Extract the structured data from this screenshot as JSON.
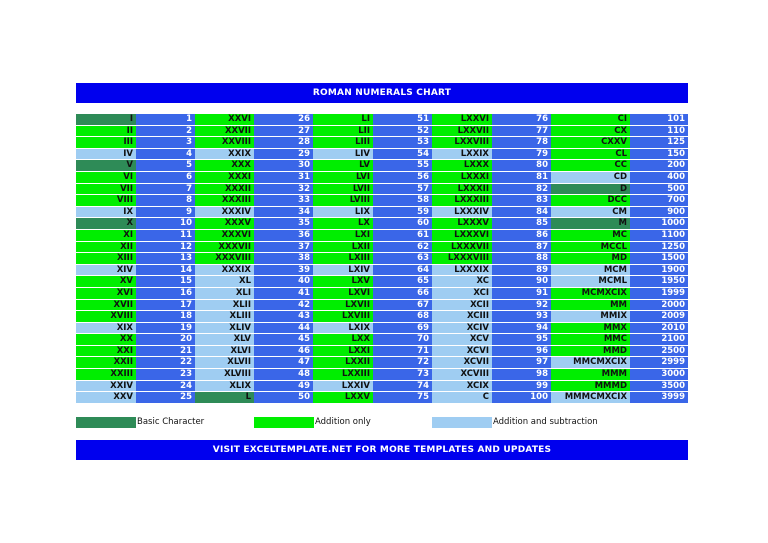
{
  "title": "ROMAN NUMERALS CHART",
  "footer": "VISIT EXCELTEMPLATE.NET FOR MORE TEMPLATES AND UPDATES",
  "colors": {
    "basic": "#2e8b57",
    "addition": "#00ee00",
    "subtraction": "#9fcdf2",
    "number": "#3a66e8",
    "banner": "#0000ee"
  },
  "legend": [
    {
      "type": "basic",
      "label": "Basic Character"
    },
    {
      "type": "add",
      "label": "Addition only"
    },
    {
      "type": "sub",
      "label": "Addition and subtraction"
    }
  ],
  "columns": [
    [
      [
        "I",
        "1",
        "basic"
      ],
      [
        "II",
        "2",
        "add"
      ],
      [
        "III",
        "3",
        "add"
      ],
      [
        "IV",
        "4",
        "sub"
      ],
      [
        "V",
        "5",
        "basic"
      ],
      [
        "VI",
        "6",
        "add"
      ],
      [
        "VII",
        "7",
        "add"
      ],
      [
        "VIII",
        "8",
        "add"
      ],
      [
        "IX",
        "9",
        "sub"
      ],
      [
        "X",
        "10",
        "basic"
      ],
      [
        "XI",
        "11",
        "add"
      ],
      [
        "XII",
        "12",
        "add"
      ],
      [
        "XIII",
        "13",
        "add"
      ],
      [
        "XIV",
        "14",
        "sub"
      ],
      [
        "XV",
        "15",
        "add"
      ],
      [
        "XVI",
        "16",
        "add"
      ],
      [
        "XVII",
        "17",
        "add"
      ],
      [
        "XVIII",
        "18",
        "add"
      ],
      [
        "XIX",
        "19",
        "sub"
      ],
      [
        "XX",
        "20",
        "add"
      ],
      [
        "XXI",
        "21",
        "add"
      ],
      [
        "XXII",
        "22",
        "add"
      ],
      [
        "XXIII",
        "23",
        "add"
      ],
      [
        "XXIV",
        "24",
        "sub"
      ],
      [
        "XXV",
        "25",
        "sub"
      ]
    ],
    [
      [
        "XXVI",
        "26",
        "add"
      ],
      [
        "XXVII",
        "27",
        "add"
      ],
      [
        "XXVIII",
        "28",
        "add"
      ],
      [
        "XXIX",
        "29",
        "sub"
      ],
      [
        "XXX",
        "30",
        "add"
      ],
      [
        "XXXI",
        "31",
        "add"
      ],
      [
        "XXXII",
        "32",
        "add"
      ],
      [
        "XXXIII",
        "33",
        "add"
      ],
      [
        "XXXIV",
        "34",
        "sub"
      ],
      [
        "XXXV",
        "35",
        "add"
      ],
      [
        "XXXVI",
        "36",
        "add"
      ],
      [
        "XXXVII",
        "37",
        "add"
      ],
      [
        "XXXVIII",
        "38",
        "add"
      ],
      [
        "XXXIX",
        "39",
        "sub"
      ],
      [
        "XL",
        "40",
        "sub"
      ],
      [
        "XLI",
        "41",
        "sub"
      ],
      [
        "XLII",
        "42",
        "sub"
      ],
      [
        "XLIII",
        "43",
        "sub"
      ],
      [
        "XLIV",
        "44",
        "sub"
      ],
      [
        "XLV",
        "45",
        "sub"
      ],
      [
        "XLVI",
        "46",
        "sub"
      ],
      [
        "XLVII",
        "47",
        "sub"
      ],
      [
        "XLVIII",
        "48",
        "sub"
      ],
      [
        "XLIX",
        "49",
        "sub"
      ],
      [
        "L",
        "50",
        "basic"
      ]
    ],
    [
      [
        "LI",
        "51",
        "add"
      ],
      [
        "LII",
        "52",
        "add"
      ],
      [
        "LIII",
        "53",
        "add"
      ],
      [
        "LIV",
        "54",
        "sub"
      ],
      [
        "LV",
        "55",
        "add"
      ],
      [
        "LVI",
        "56",
        "add"
      ],
      [
        "LVII",
        "57",
        "add"
      ],
      [
        "LVIII",
        "58",
        "add"
      ],
      [
        "LIX",
        "59",
        "sub"
      ],
      [
        "LX",
        "60",
        "add"
      ],
      [
        "LXI",
        "61",
        "add"
      ],
      [
        "LXII",
        "62",
        "add"
      ],
      [
        "LXIII",
        "63",
        "add"
      ],
      [
        "LXIV",
        "64",
        "sub"
      ],
      [
        "LXV",
        "65",
        "add"
      ],
      [
        "LXVI",
        "66",
        "add"
      ],
      [
        "LXVII",
        "67",
        "add"
      ],
      [
        "LXVIII",
        "68",
        "add"
      ],
      [
        "LXIX",
        "69",
        "sub"
      ],
      [
        "LXX",
        "70",
        "add"
      ],
      [
        "LXXI",
        "71",
        "add"
      ],
      [
        "LXXII",
        "72",
        "add"
      ],
      [
        "LXXIII",
        "73",
        "add"
      ],
      [
        "LXXIV",
        "74",
        "sub"
      ],
      [
        "LXXV",
        "75",
        "add"
      ]
    ],
    [
      [
        "LXXVI",
        "76",
        "add"
      ],
      [
        "LXXVII",
        "77",
        "add"
      ],
      [
        "LXXVIII",
        "78",
        "add"
      ],
      [
        "LXXIX",
        "79",
        "sub"
      ],
      [
        "LXXX",
        "80",
        "add"
      ],
      [
        "LXXXI",
        "81",
        "add"
      ],
      [
        "LXXXII",
        "82",
        "add"
      ],
      [
        "LXXXIII",
        "83",
        "add"
      ],
      [
        "LXXXIV",
        "84",
        "sub"
      ],
      [
        "LXXXV",
        "85",
        "add"
      ],
      [
        "LXXXVI",
        "86",
        "add"
      ],
      [
        "LXXXVII",
        "87",
        "add"
      ],
      [
        "LXXXVIII",
        "88",
        "add"
      ],
      [
        "LXXXIX",
        "89",
        "sub"
      ],
      [
        "XC",
        "90",
        "sub"
      ],
      [
        "XCI",
        "91",
        "sub"
      ],
      [
        "XCII",
        "92",
        "sub"
      ],
      [
        "XCIII",
        "93",
        "sub"
      ],
      [
        "XCIV",
        "94",
        "sub"
      ],
      [
        "XCV",
        "95",
        "sub"
      ],
      [
        "XCVI",
        "96",
        "sub"
      ],
      [
        "XCVII",
        "97",
        "sub"
      ],
      [
        "XCVIII",
        "98",
        "sub"
      ],
      [
        "XCIX",
        "99",
        "sub"
      ],
      [
        "C",
        "100",
        "sub"
      ]
    ],
    [
      [
        "CI",
        "101",
        "add"
      ],
      [
        "CX",
        "110",
        "add"
      ],
      [
        "CXXV",
        "125",
        "add"
      ],
      [
        "CL",
        "150",
        "add"
      ],
      [
        "CC",
        "200",
        "add"
      ],
      [
        "CD",
        "400",
        "sub"
      ],
      [
        "D",
        "500",
        "basic"
      ],
      [
        "DCC",
        "700",
        "add"
      ],
      [
        "CM",
        "900",
        "sub"
      ],
      [
        "M",
        "1000",
        "basic"
      ],
      [
        "MC",
        "1100",
        "add"
      ],
      [
        "MCCL",
        "1250",
        "add"
      ],
      [
        "MD",
        "1500",
        "add"
      ],
      [
        "MCM",
        "1900",
        "sub"
      ],
      [
        "MCML",
        "1950",
        "sub"
      ],
      [
        "MCMXCIX",
        "1999",
        "add"
      ],
      [
        "MM",
        "2000",
        "add"
      ],
      [
        "MMIX",
        "2009",
        "sub"
      ],
      [
        "MMX",
        "2010",
        "add"
      ],
      [
        "MMC",
        "2100",
        "add"
      ],
      [
        "MMD",
        "2500",
        "add"
      ],
      [
        "MMCMXCIX",
        "2999",
        "sub"
      ],
      [
        "MMM",
        "3000",
        "add"
      ],
      [
        "MMMD",
        "3500",
        "add"
      ],
      [
        "MMMCMXCIX",
        "3999",
        "sub"
      ]
    ]
  ]
}
